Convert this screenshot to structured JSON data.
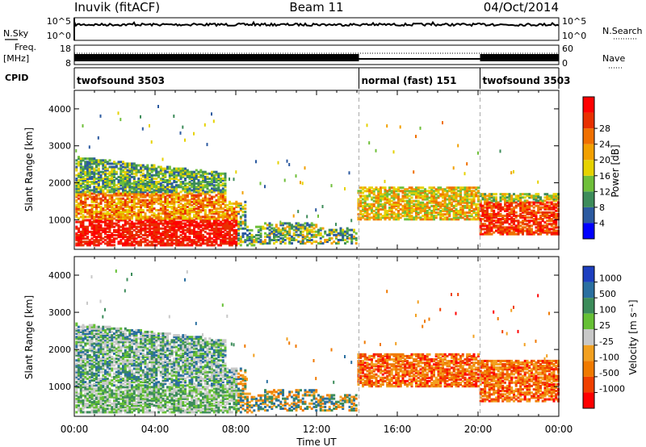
{
  "header": {
    "station": "Inuvik (fitACF)",
    "beam": "Beam 11",
    "date": "04/Oct/2014"
  },
  "side_labels": {
    "nsky": "N.Sky",
    "freq": "Freq.",
    "mhz": "[MHz]",
    "cpid": "CPID",
    "nsearch": "N.Search",
    "nave": "Nave"
  },
  "top_strip": {
    "nsky_ticks": [
      "10^5",
      "10^0"
    ],
    "nsearch_ticks": [
      "10^5",
      "10^0"
    ],
    "freq_ticks": [
      "18",
      "8"
    ],
    "nave_ticks": [
      "60",
      "0"
    ]
  },
  "cpid_segments": [
    {
      "label": "twofsound 3503",
      "start": 0,
      "end": 14.1
    },
    {
      "label": "normal (fast) 151",
      "start": 14.1,
      "end": 20.1
    },
    {
      "label": "twofsound 3503",
      "start": 20.1,
      "end": 24
    }
  ],
  "colors": {
    "power": [
      "#0000ff",
      "#2c5aa0",
      "#3d8c5a",
      "#6fbf3a",
      "#e6d200",
      "#f2a000",
      "#f07000",
      "#e83000",
      "#ff0000"
    ],
    "velocity": [
      "#1d3fbf",
      "#2a6fa0",
      "#3c8c5a",
      "#66c035",
      "#c8c8c8",
      "#f2a020",
      "#f07a00",
      "#f04000",
      "#ff0000"
    ]
  },
  "chart_data": [
    {
      "type": "heatmap",
      "panel": "power",
      "ylabel": "Slant Range [km]",
      "yticks": [
        "1000",
        "2000",
        "3000",
        "4000"
      ],
      "ylim": [
        200,
        4500
      ],
      "xlim": [
        0,
        24
      ],
      "colorbar_label": "Power [dB]",
      "colorbar_ticks": [
        "4",
        "8",
        "12",
        "16",
        "20",
        "24",
        "28"
      ],
      "colorbar_range": [
        0,
        32
      ]
    },
    {
      "type": "heatmap",
      "panel": "velocity",
      "ylabel": "Slant Range [km]",
      "yticks": [
        "1000",
        "2000",
        "3000",
        "4000"
      ],
      "ylim": [
        200,
        4500
      ],
      "xlim": [
        0,
        24
      ],
      "colorbar_label": "Velocity [m s⁻¹]",
      "colorbar_ticks": [
        "1000",
        "500",
        "100",
        "25",
        "-25",
        "-100",
        "-500",
        "-1000"
      ]
    }
  ],
  "x_axis": {
    "ticks": [
      "00:00",
      "04:00",
      "08:00",
      "12:00",
      "16:00",
      "20:00",
      "00:00"
    ],
    "label": "Time UT"
  }
}
